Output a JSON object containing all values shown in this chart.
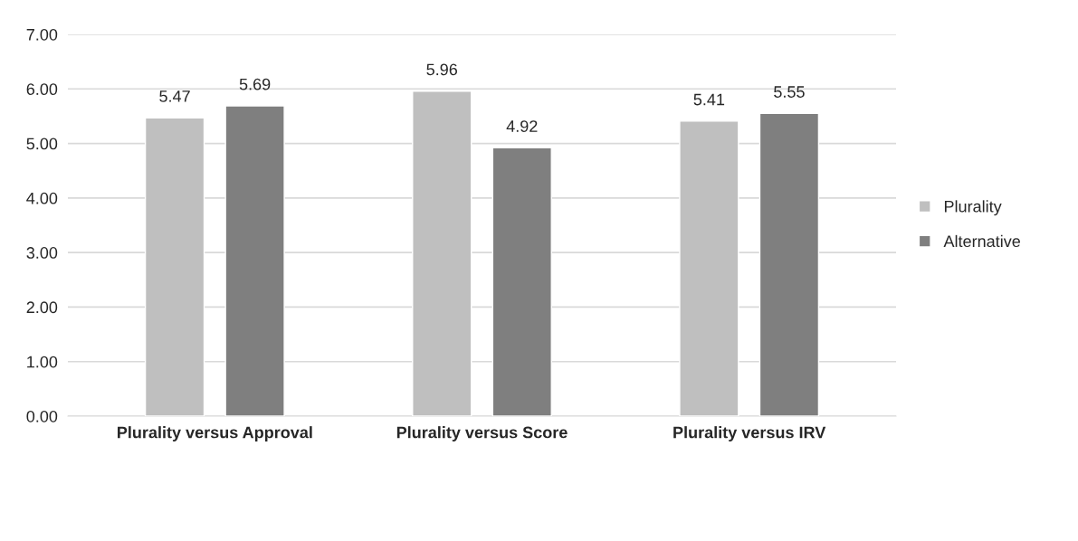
{
  "chart_data": {
    "type": "bar",
    "categories": [
      "Plurality versus Approval",
      "Plurality versus Score",
      "Plurality versus IRV"
    ],
    "series": [
      {
        "name": "Plurality",
        "color": "#bfbfbf",
        "values": [
          5.47,
          5.96,
          5.41
        ]
      },
      {
        "name": "Alternative",
        "color": "#7f7f7f",
        "values": [
          5.69,
          4.92,
          5.55
        ]
      }
    ],
    "ylim": [
      0,
      7
    ],
    "yticks": [
      {
        "value": 0,
        "label": "0.00"
      },
      {
        "value": 1,
        "label": "1.00"
      },
      {
        "value": 2,
        "label": "2.00"
      },
      {
        "value": 3,
        "label": "3.00"
      },
      {
        "value": 4,
        "label": "4.00"
      },
      {
        "value": 5,
        "label": "5.00"
      },
      {
        "value": 6,
        "label": "6.00"
      },
      {
        "value": 7,
        "label": "7.00"
      }
    ],
    "grid": "y",
    "legend": "right",
    "data_labels": true
  }
}
